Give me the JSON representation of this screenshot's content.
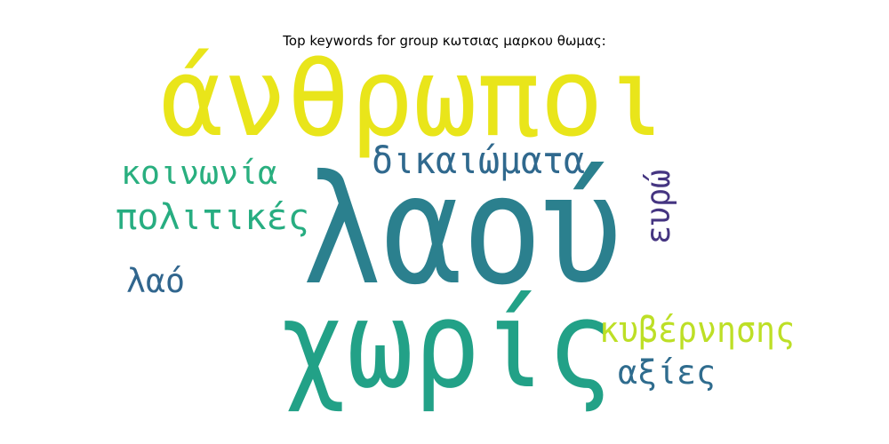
{
  "chart_data": {
    "type": "wordcloud",
    "title": "Top keywords for group κωτσιας μαρκου θωμας:",
    "words": [
      {
        "text": "λαού",
        "weight": 1.0,
        "color": "#2b808e",
        "orientation": "horizontal"
      },
      {
        "text": "χωρίς",
        "weight": 0.82,
        "color": "#22a187",
        "orientation": "horizontal"
      },
      {
        "text": "άνθρωποι",
        "weight": 0.7,
        "color": "#e9e51a",
        "orientation": "horizontal"
      },
      {
        "text": "δικαιώματα",
        "weight": 0.26,
        "color": "#30698e",
        "orientation": "horizontal"
      },
      {
        "text": "πολιτικές",
        "weight": 0.24,
        "color": "#27ad81",
        "orientation": "horizontal"
      },
      {
        "text": "κυβέρνησης",
        "weight": 0.24,
        "color": "#bddf26",
        "orientation": "horizontal"
      },
      {
        "text": "κοινωνία",
        "weight": 0.22,
        "color": "#29af7f",
        "orientation": "horizontal"
      },
      {
        "text": "αξίες",
        "weight": 0.22,
        "color": "#2f6c8e",
        "orientation": "horizontal"
      },
      {
        "text": "λαό",
        "weight": 0.22,
        "color": "#31668e",
        "orientation": "horizontal"
      },
      {
        "text": "ευρώ",
        "weight": 0.22,
        "color": "#453581",
        "orientation": "vertical"
      }
    ]
  }
}
